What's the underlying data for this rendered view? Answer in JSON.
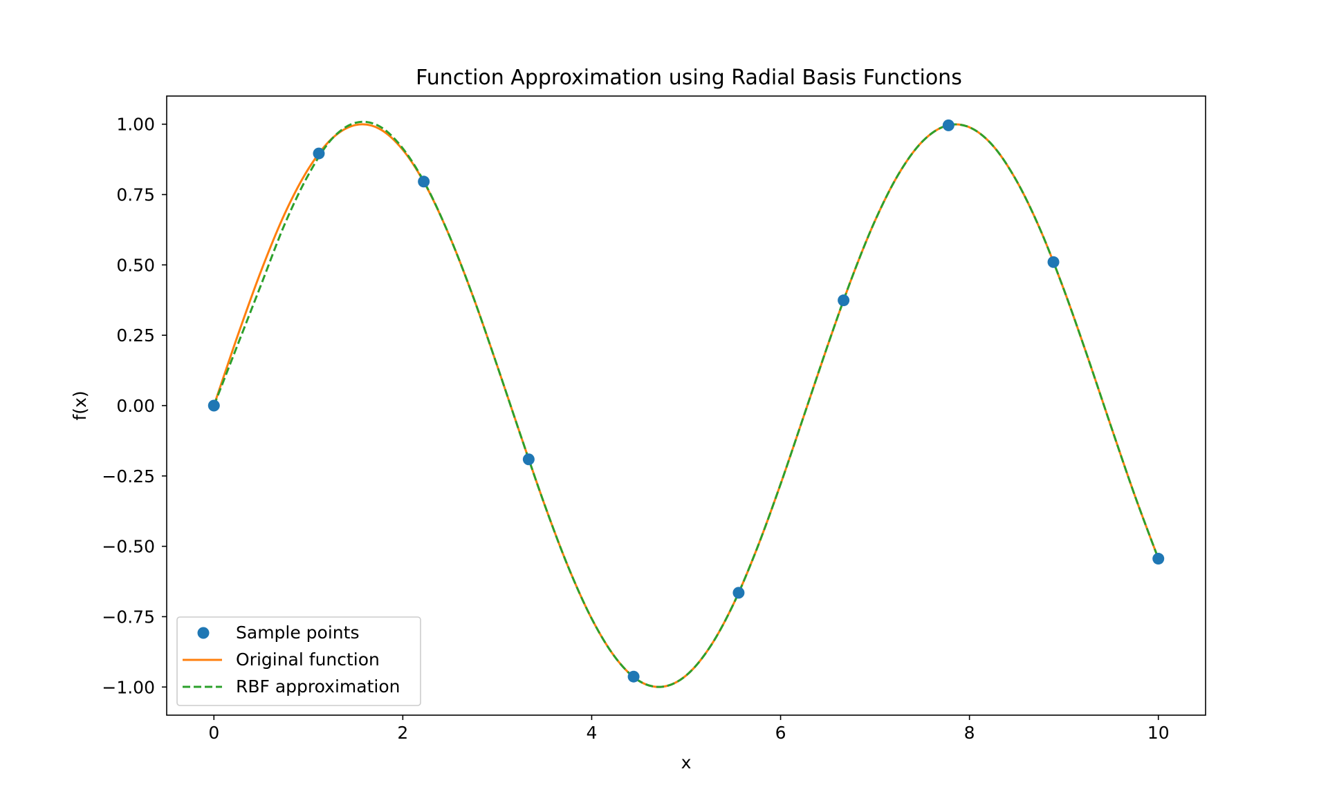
{
  "chart_data": {
    "type": "line",
    "title": "Function Approximation using Radial Basis Functions",
    "xlabel": "x",
    "ylabel": "f(x)",
    "xlim": [
      -0.5,
      10.5
    ],
    "ylim": [
      -1.1,
      1.1
    ],
    "xticks": [
      0,
      2,
      4,
      6,
      8,
      10
    ],
    "xtick_labels": [
      "0",
      "2",
      "4",
      "6",
      "8",
      "10"
    ],
    "yticks": [
      1.0,
      0.75,
      0.5,
      0.25,
      0.0,
      -0.25,
      -0.5,
      -0.75,
      -1.0
    ],
    "ytick_labels": [
      "1.00",
      "0.75",
      "0.50",
      "0.25",
      "0.00",
      "−0.25",
      "−0.50",
      "−0.75",
      "−1.00"
    ],
    "grid": false,
    "legend_position": "lower-left",
    "legend": [
      "Sample points",
      "Original function",
      "RBF approximation"
    ],
    "colors": {
      "points": "#1f77b4",
      "original": "#ff7f0e",
      "rbf": "#2ca02c"
    },
    "series": [
      {
        "name": "Sample points",
        "style": "markers",
        "x": [
          0.0,
          1.111,
          2.222,
          3.333,
          4.444,
          5.556,
          6.667,
          7.778,
          8.889,
          10.0
        ],
        "y": [
          0.0,
          0.896,
          0.796,
          -0.191,
          -0.963,
          -0.665,
          0.374,
          0.996,
          0.51,
          -0.544
        ]
      },
      {
        "name": "Original function",
        "style": "solid",
        "x": [
          0.0,
          0.25,
          0.5,
          0.75,
          1.0,
          1.25,
          1.5,
          1.75,
          2.0,
          2.25,
          2.5,
          2.75,
          3.0,
          3.25,
          3.5,
          3.75,
          4.0,
          4.25,
          4.5,
          4.75,
          5.0,
          5.25,
          5.5,
          5.75,
          6.0,
          6.25,
          6.5,
          6.75,
          7.0,
          7.25,
          7.5,
          7.75,
          8.0,
          8.25,
          8.5,
          8.75,
          9.0,
          9.25,
          9.5,
          9.75,
          10.0
        ],
        "y": [
          0.0,
          0.247,
          0.479,
          0.682,
          0.841,
          0.949,
          0.997,
          0.984,
          0.909,
          0.778,
          0.598,
          0.382,
          0.141,
          -0.108,
          -0.351,
          -0.572,
          -0.757,
          -0.895,
          -0.978,
          -0.999,
          -0.959,
          -0.859,
          -0.706,
          -0.508,
          -0.279,
          -0.033,
          0.215,
          0.45,
          0.657,
          0.823,
          0.938,
          0.994,
          0.989,
          0.923,
          0.798,
          0.625,
          0.412,
          0.174,
          -0.075,
          -0.319,
          -0.544
        ]
      },
      {
        "name": "RBF approximation",
        "style": "dashed",
        "x": [
          0.0,
          0.25,
          0.5,
          0.75,
          1.0,
          1.25,
          1.5,
          1.75,
          2.0,
          2.25,
          2.5,
          2.75,
          3.0,
          3.25,
          3.5,
          3.75,
          4.0,
          4.25,
          4.5,
          4.75,
          5.0,
          5.25,
          5.5,
          5.75,
          6.0,
          6.25,
          6.5,
          6.75,
          7.0,
          7.25,
          7.5,
          7.75,
          8.0,
          8.25,
          8.5,
          8.75,
          9.0,
          9.25,
          9.5,
          9.75,
          10.0
        ],
        "y": [
          0.0,
          0.215,
          0.43,
          0.645,
          0.82,
          0.948,
          1.005,
          0.993,
          0.914,
          0.78,
          0.598,
          0.382,
          0.141,
          -0.108,
          -0.351,
          -0.572,
          -0.757,
          -0.895,
          -0.978,
          -0.999,
          -0.959,
          -0.859,
          -0.706,
          -0.508,
          -0.279,
          -0.033,
          0.215,
          0.45,
          0.657,
          0.823,
          0.938,
          0.994,
          0.989,
          0.923,
          0.798,
          0.625,
          0.412,
          0.174,
          -0.075,
          -0.319,
          -0.544
        ]
      }
    ]
  }
}
